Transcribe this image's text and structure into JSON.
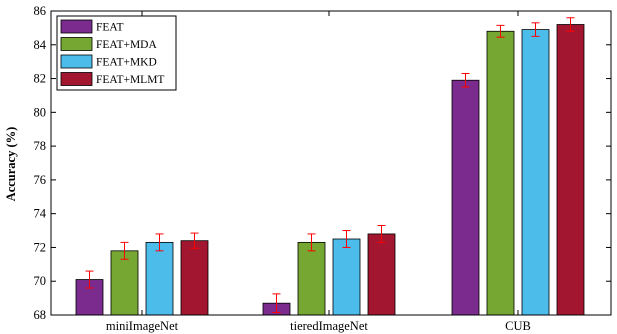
{
  "chart_data": {
    "type": "bar",
    "title": "",
    "xlabel": "",
    "ylabel": "Accuracy (%)",
    "ylim": [
      68,
      86
    ],
    "yticks": [
      68,
      70,
      72,
      74,
      76,
      78,
      80,
      82,
      84,
      86
    ],
    "grid": false,
    "legend_position": "top-left",
    "categories": [
      "miniImageNet",
      "tieredImageNet",
      "CUB"
    ],
    "series": [
      {
        "name": "FEAT",
        "color": "#7B2B8D",
        "values": [
          70.1,
          68.7,
          81.9
        ],
        "errors": [
          0.5,
          0.55,
          0.4
        ]
      },
      {
        "name": "FEAT+MDA",
        "color": "#76A733",
        "values": [
          71.8,
          72.3,
          84.8
        ],
        "errors": [
          0.5,
          0.5,
          0.35
        ]
      },
      {
        "name": "FEAT+MKD",
        "color": "#4CBCEB",
        "values": [
          72.3,
          72.5,
          84.9
        ],
        "errors": [
          0.5,
          0.5,
          0.4
        ]
      },
      {
        "name": "FEAT+MLMT",
        "color": "#A2172F",
        "values": [
          72.4,
          72.8,
          85.2
        ],
        "errors": [
          0.45,
          0.5,
          0.4
        ]
      }
    ],
    "error_bar_color": "#FF0000"
  }
}
